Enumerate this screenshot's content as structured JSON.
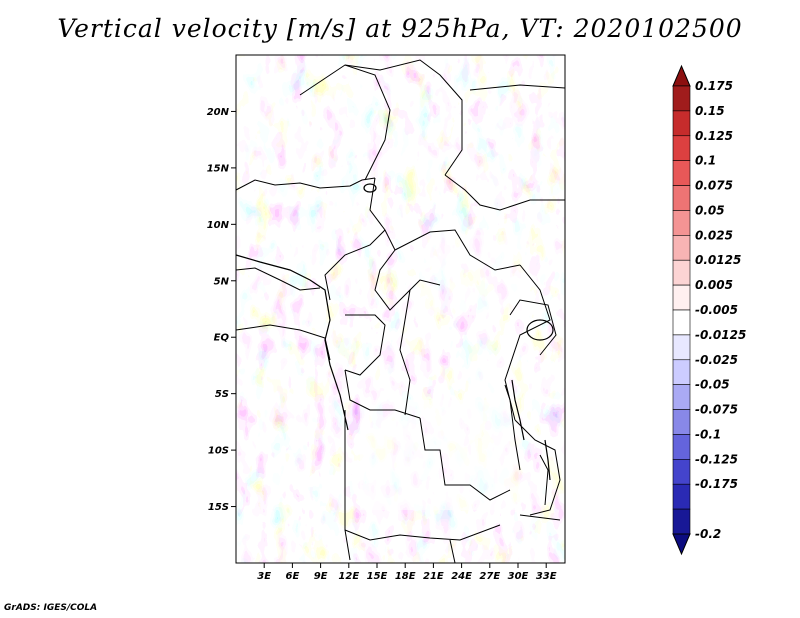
{
  "title": "Vertical velocity [m/s] at 925hPa, VT: 2020102500",
  "footer": "GrADS: IGES/COLA",
  "map": {
    "lon_range": [
      0,
      35
    ],
    "lat_range": [
      -20,
      25
    ],
    "lat_ticks": [
      {
        "lat": 20,
        "label": "20N"
      },
      {
        "lat": 15,
        "label": "15N"
      },
      {
        "lat": 10,
        "label": "10N"
      },
      {
        "lat": 5,
        "label": "5N"
      },
      {
        "lat": 0,
        "label": "EQ"
      },
      {
        "lat": -5,
        "label": "5S"
      },
      {
        "lat": -10,
        "label": "10S"
      },
      {
        "lat": -15,
        "label": "15S"
      }
    ],
    "lon_ticks": [
      {
        "lon": 3,
        "label": "3E"
      },
      {
        "lon": 6,
        "label": "6E"
      },
      {
        "lon": 9,
        "label": "9E"
      },
      {
        "lon": 12,
        "label": "12E"
      },
      {
        "lon": 15,
        "label": "15E"
      },
      {
        "lon": 18,
        "label": "18E"
      },
      {
        "lon": 21,
        "label": "21E"
      },
      {
        "lon": 24,
        "label": "24E"
      },
      {
        "lon": 27,
        "label": "27E"
      },
      {
        "lon": 30,
        "label": "30E"
      },
      {
        "lon": 33,
        "label": "33E"
      }
    ]
  },
  "colorbar": {
    "levels": [
      "0.175",
      "0.15",
      "0.125",
      "0.1",
      "0.075",
      "0.05",
      "0.025",
      "0.0125",
      "0.005",
      "-0.005",
      "-0.0125",
      "-0.025",
      "-0.05",
      "-0.075",
      "-0.1",
      "-0.125",
      "-0.175",
      "-0.2"
    ],
    "colors": [
      "#a01c1c",
      "#c62c2c",
      "#dc4040",
      "#e85858",
      "#ee7474",
      "#f49494",
      "#f8b4b4",
      "#fcd4d4",
      "#fff0f0",
      "#ffffff",
      "#e8e8ff",
      "#ccccff",
      "#aaaaf4",
      "#8888e8",
      "#6464dc",
      "#4444cc",
      "#2a2ab4",
      "#181896"
    ],
    "top_color": "#8c1010",
    "bottom_color": "#0c0c80"
  }
}
